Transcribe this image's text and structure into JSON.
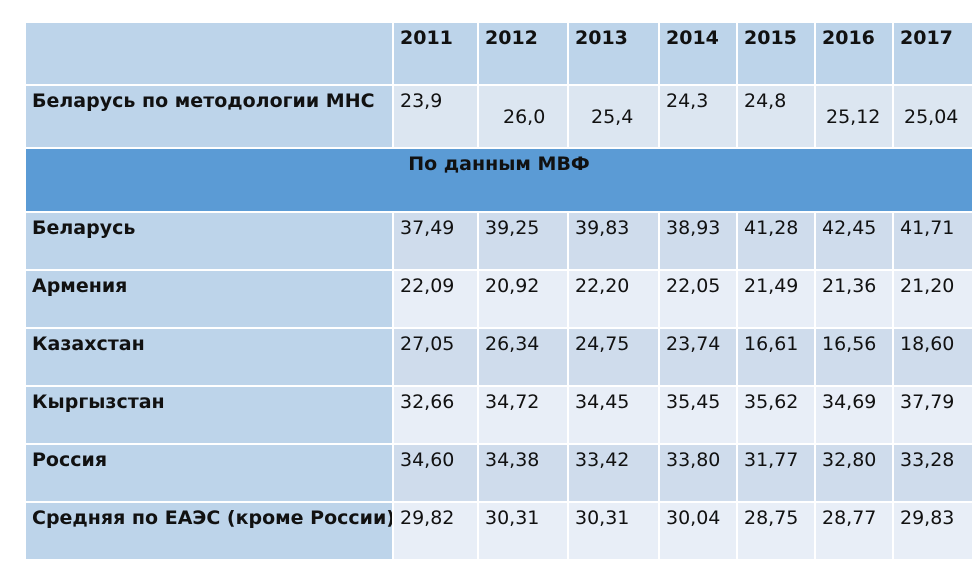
{
  "header": {
    "years": [
      "2011",
      "2012",
      "2013",
      "2014",
      "2015",
      "2016",
      "2017"
    ]
  },
  "mns_row": {
    "label": "Беларусь по методологии МНС",
    "values": [
      "23,9",
      "26,0",
      "25,4",
      "24,3",
      "24,8",
      "25,12",
      "25,04"
    ]
  },
  "section": {
    "title": "По данным МВФ"
  },
  "rows": [
    {
      "label": "Беларусь",
      "values": [
        "37,49",
        "39,25",
        "39,83",
        "38,93",
        "41,28",
        "42,45",
        "41,71"
      ]
    },
    {
      "label": "Армения",
      "values": [
        "22,09",
        "20,92",
        "22,20",
        "22,05",
        "21,49",
        "21,36",
        "21,20"
      ]
    },
    {
      "label": "Казахстан",
      "values": [
        "27,05",
        "26,34",
        "24,75",
        "23,74",
        "16,61",
        "16,56",
        "18,60"
      ]
    },
    {
      "label": "Кыргызстан",
      "values": [
        "32,66",
        "34,72",
        "34,45",
        "35,45",
        "35,62",
        "34,69",
        "37,79"
      ]
    },
    {
      "label": "Россия",
      "values": [
        "34,60",
        "34,38",
        "33,42",
        "33,80",
        "31,77",
        "32,80",
        "33,28"
      ]
    },
    {
      "label": "Средняя по ЕАЭС (кроме России)",
      "values": [
        "29,82",
        "30,31",
        "30,31",
        "30,04",
        "28,75",
        "28,77",
        "29,83"
      ]
    }
  ]
}
